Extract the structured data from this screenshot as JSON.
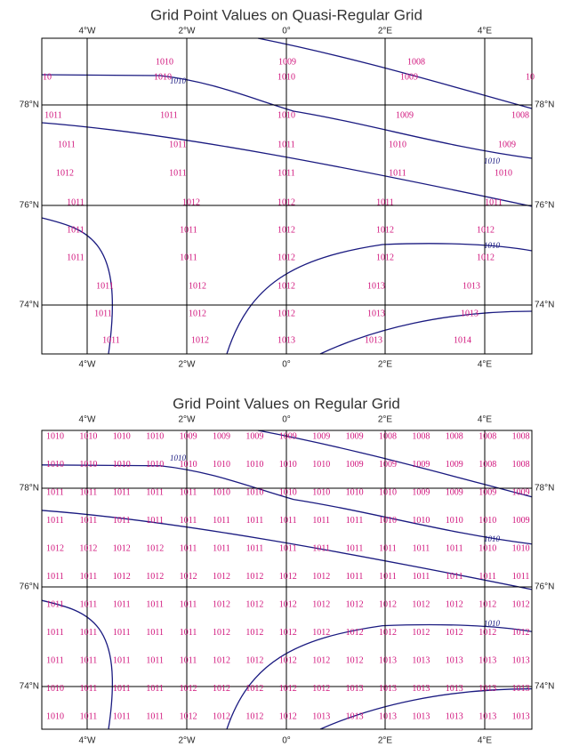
{
  "panels": [
    {
      "title": "Grid Point Values on Quasi-Regular Grid",
      "top_labels": [
        "4°W",
        "2°W",
        "0°",
        "2°E",
        "4°E"
      ],
      "bottom_labels": [
        "4°W",
        "2°W",
        "0°",
        "2°E",
        "4°E"
      ],
      "left_labels": [
        "78°N",
        "76°N",
        "74°N"
      ],
      "right_labels": [
        "78°N",
        "76°N",
        "74°N"
      ],
      "rows": [
        [
          1010,
          1009,
          1008
        ],
        [
          10,
          1010,
          1010,
          1009,
          10
        ],
        [
          1011,
          1011,
          1010,
          1009,
          1008
        ],
        [
          1011,
          1011,
          1011,
          1010,
          1009
        ],
        [
          1012,
          1011,
          1011,
          1011,
          1010
        ],
        [
          1011,
          1012,
          1012,
          1011,
          1011
        ],
        [
          1011,
          1011,
          1012,
          1012,
          1012
        ],
        [
          1011,
          1011,
          1012,
          1012,
          1012
        ],
        [
          1011,
          1012,
          1012,
          1013,
          1013
        ],
        [
          1011,
          1012,
          1012,
          1013,
          1013
        ],
        [
          1011,
          1012,
          1013,
          1013,
          1014
        ]
      ],
      "contour_labels": [
        "1010",
        "1010",
        "1010"
      ]
    },
    {
      "title": "Grid Point Values on Regular Grid",
      "top_labels": [
        "4°W",
        "2°W",
        "0°",
        "2°E",
        "4°E"
      ],
      "bottom_labels": [
        "4°W",
        "2°W",
        "0°",
        "2°E",
        "4°E"
      ],
      "left_labels": [
        "78°N",
        "76°N",
        "74°N"
      ],
      "right_labels": [
        "78°N",
        "76°N",
        "74°N"
      ],
      "rows": [
        [
          1010,
          1010,
          1010,
          1010,
          1009,
          1009,
          1009,
          1009,
          1009,
          1009,
          1008,
          1008,
          1008,
          1008,
          1008
        ],
        [
          1010,
          1010,
          1010,
          1010,
          1010,
          1010,
          1010,
          1010,
          1010,
          1009,
          1009,
          1009,
          1009,
          1008,
          1008
        ],
        [
          1011,
          1011,
          1011,
          1011,
          1011,
          1010,
          1010,
          1010,
          1010,
          1010,
          1010,
          1009,
          1009,
          1009,
          1009
        ],
        [
          1011,
          1011,
          1011,
          1011,
          1011,
          1011,
          1011,
          1011,
          1011,
          1011,
          1010,
          1010,
          1010,
          1010,
          1009
        ],
        [
          1012,
          1012,
          1012,
          1012,
          1011,
          1011,
          1011,
          1011,
          1011,
          1011,
          1011,
          1011,
          1011,
          1010,
          1010
        ],
        [
          1011,
          1011,
          1012,
          1012,
          1012,
          1012,
          1012,
          1012,
          1012,
          1011,
          1011,
          1011,
          1011,
          1011,
          1011
        ],
        [
          1011,
          1011,
          1011,
          1011,
          1011,
          1012,
          1012,
          1012,
          1012,
          1012,
          1012,
          1012,
          1012,
          1012,
          1012
        ],
        [
          1011,
          1011,
          1011,
          1011,
          1011,
          1012,
          1012,
          1012,
          1012,
          1012,
          1012,
          1012,
          1012,
          1012,
          1012
        ],
        [
          1011,
          1011,
          1011,
          1011,
          1011,
          1012,
          1012,
          1012,
          1012,
          1012,
          1013,
          1013,
          1013,
          1013,
          1013
        ],
        [
          1010,
          1011,
          1011,
          1011,
          1012,
          1012,
          1012,
          1012,
          1012,
          1013,
          1013,
          1013,
          1013,
          1013,
          1013
        ],
        [
          1010,
          1011,
          1011,
          1011,
          1012,
          1012,
          1012,
          1012,
          1013,
          1013,
          1013,
          1013,
          1013,
          1013,
          1013
        ]
      ],
      "contour_labels": [
        "1010",
        "1010",
        "1010"
      ]
    }
  ]
}
